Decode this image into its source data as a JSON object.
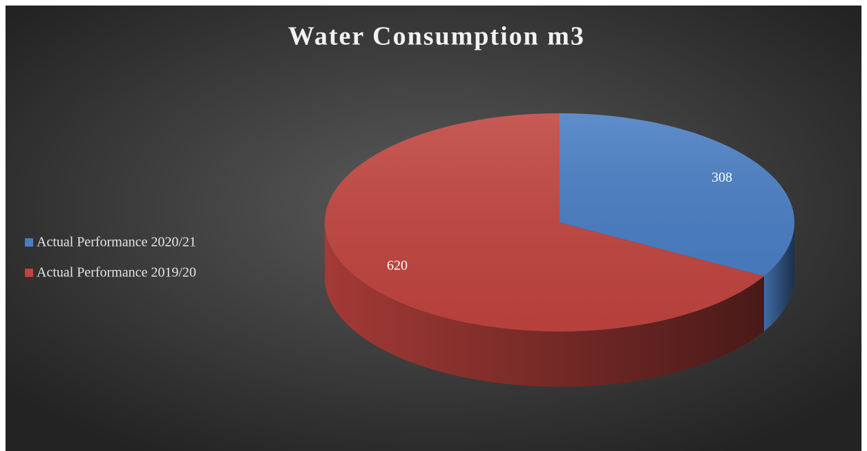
{
  "chart_data": {
    "type": "pie",
    "title": "Water Consumption m3",
    "categories": [
      "Actual Performance 2020/21",
      "Actual Performance 2019/20"
    ],
    "values": [
      308,
      620
    ],
    "colors": [
      "#4a7ec4",
      "#c0443f"
    ],
    "legend": "left",
    "three_d": true
  }
}
